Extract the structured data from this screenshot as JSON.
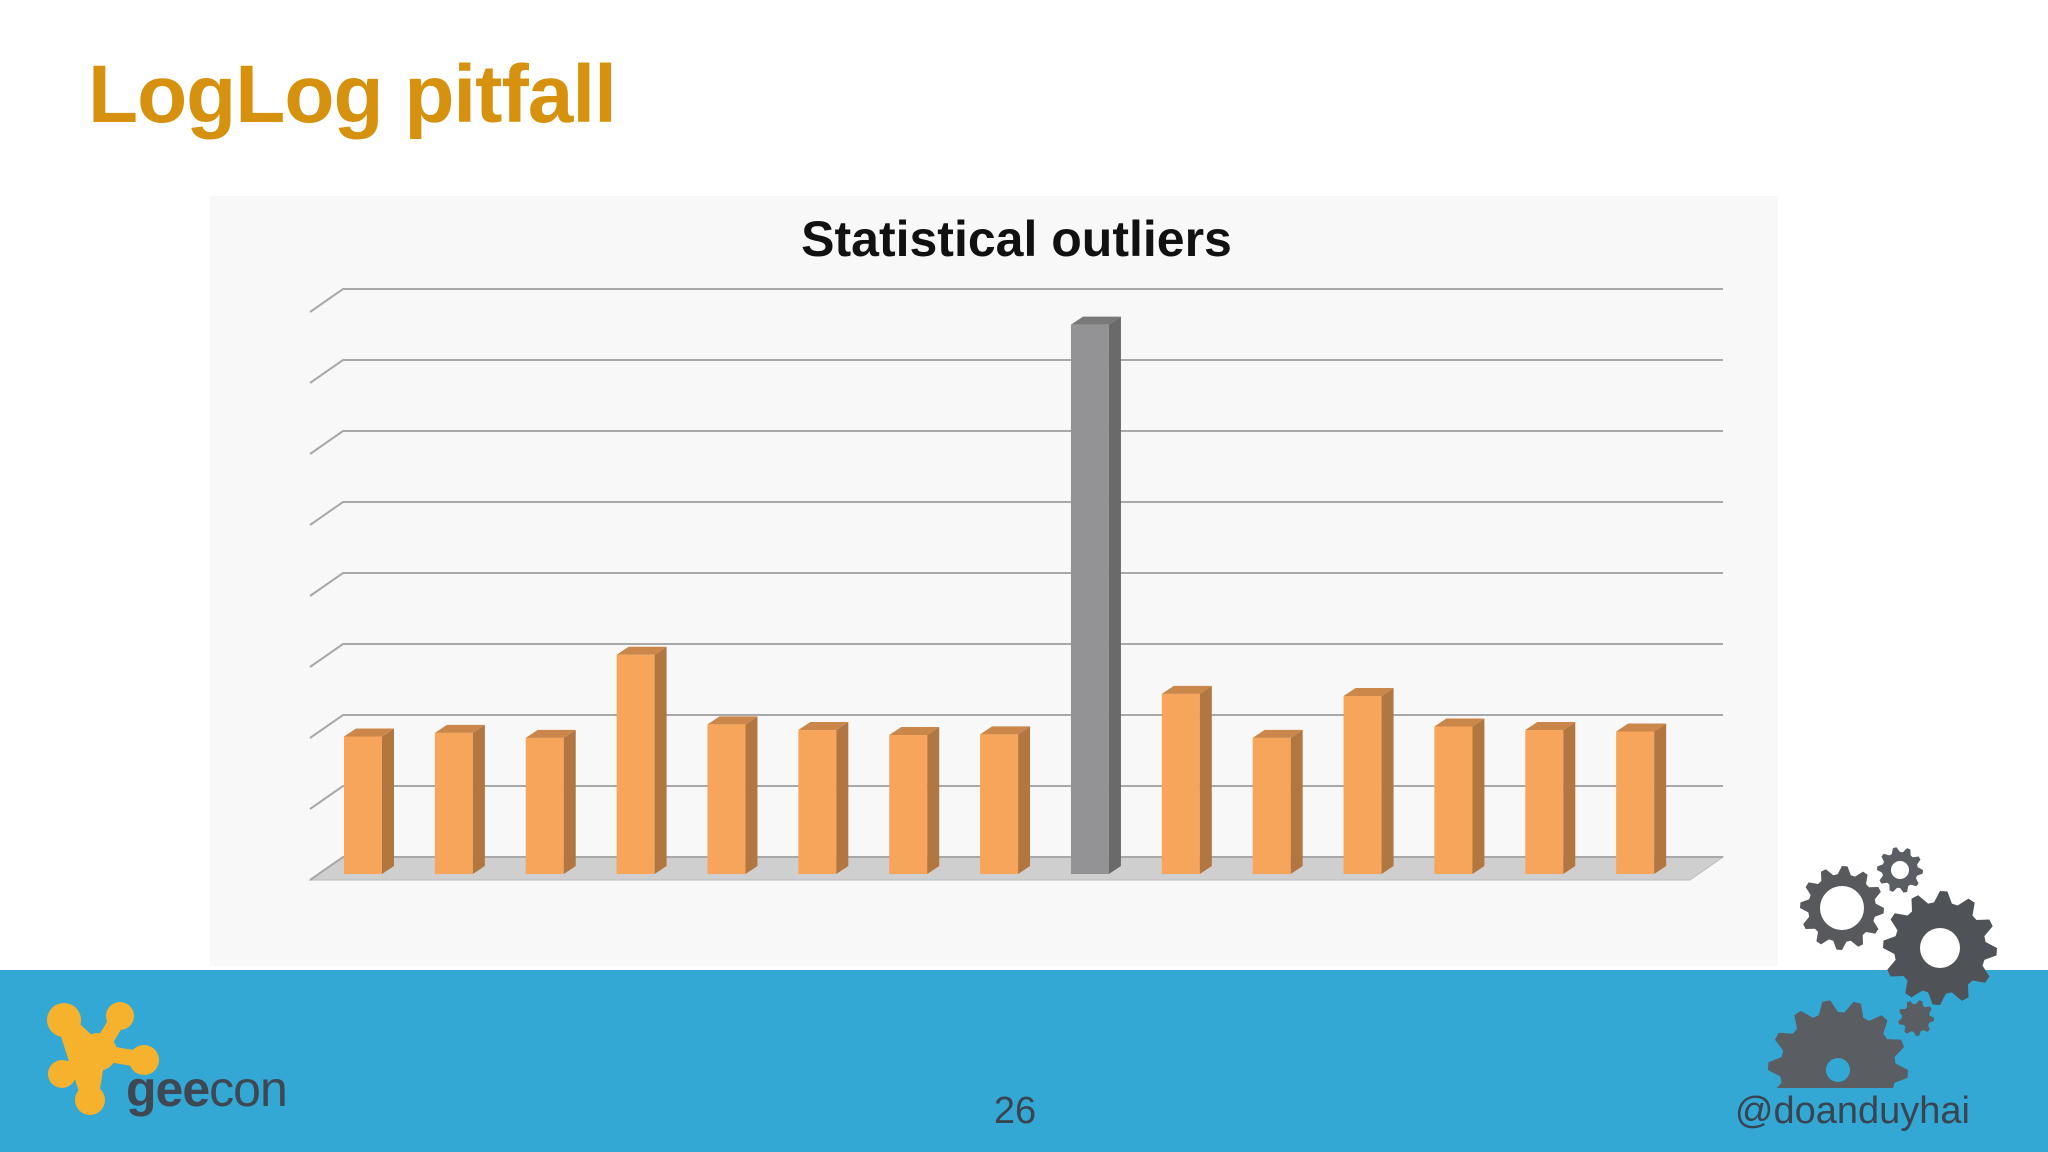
{
  "slide": {
    "title": "LogLog pitfall",
    "page_number": "26",
    "handle": "@doanduyhai",
    "logo": {
      "part1": "gee",
      "part2": "con"
    }
  },
  "colors": {
    "title": "#d6920e",
    "bar_normal": "#f7a55a",
    "bar_outlier": "#939395",
    "footer": "#34a8d4"
  },
  "icons": [
    "geecon-logo-icon",
    "gears-icon"
  ],
  "chart_data": {
    "type": "bar",
    "title": "Statistical outliers",
    "categories": [
      "",
      "",
      "",
      "",
      "",
      "",
      "",
      "",
      "",
      "",
      "",
      "",
      "",
      "",
      ""
    ],
    "values": [
      2.05,
      2.1,
      2.03,
      3.2,
      2.22,
      2.14,
      2.07,
      2.08,
      7.85,
      2.65,
      2.03,
      2.62,
      2.19,
      2.14,
      2.12
    ],
    "highlight_index": 8,
    "ylim": [
      0,
      8
    ],
    "grid": true,
    "style": "3d-columns",
    "legend": "none"
  }
}
